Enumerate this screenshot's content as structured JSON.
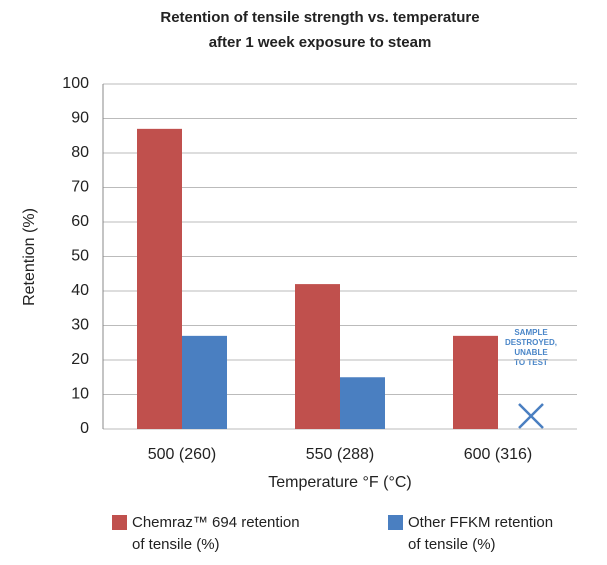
{
  "chart_data": {
    "type": "bar",
    "title": [
      "Retention of tensile strength vs. temperature",
      "after 1 week exposure to steam"
    ],
    "categories": [
      "500 (260)",
      "550 (288)",
      "600 (316)"
    ],
    "series": [
      {
        "name": "Chemraz™ 694 retention of tensile (%)",
        "color": "#c0504d",
        "values": [
          87,
          42,
          27
        ]
      },
      {
        "name": "Other FFKM retention of tensile (%)",
        "color": "#4a7fc1",
        "values": [
          27,
          15,
          null
        ]
      }
    ],
    "xlabel": "Temperature °F (°C)",
    "ylabel": "Retention (%)",
    "annotation": [
      "SAMPLE",
      "DESTROYED,",
      "UNABLE",
      "TO TEST"
    ],
    "ylim": [
      0,
      100
    ],
    "yticks": [
      0,
      10,
      20,
      30,
      40,
      50,
      60,
      70,
      80,
      90,
      100
    ],
    "grid": true
  }
}
